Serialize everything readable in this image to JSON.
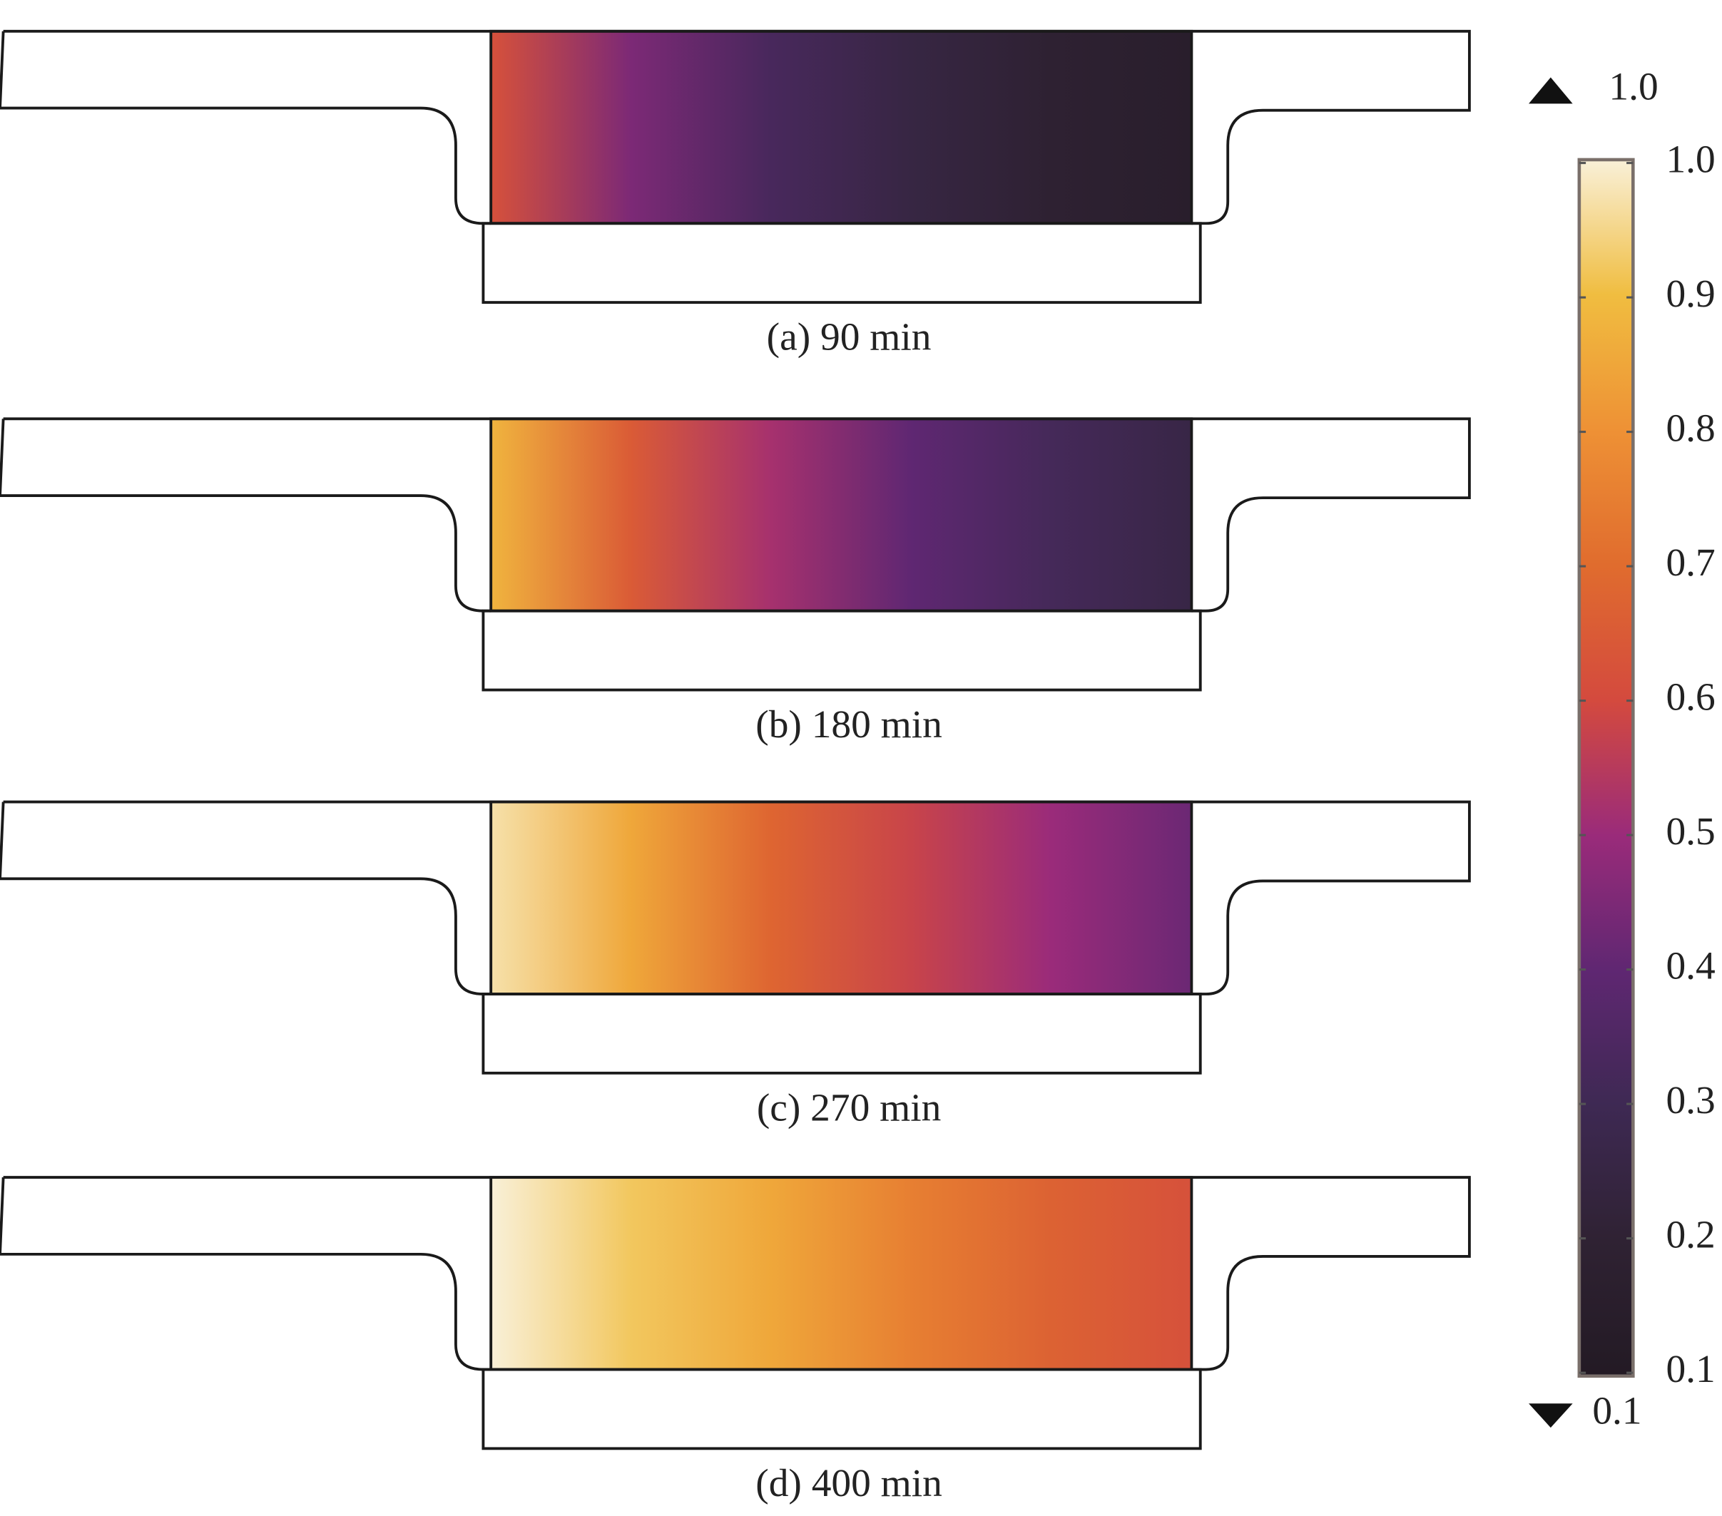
{
  "chart_data": {
    "type": "field",
    "panels": [
      {
        "label": "(a) 90 min",
        "values": [
          0.62,
          0.45,
          0.33,
          0.25,
          0.19,
          0.15
        ]
      },
      {
        "label": "(b) 180 min",
        "values": [
          0.88,
          0.65,
          0.52,
          0.4,
          0.32,
          0.26
        ]
      },
      {
        "label": "(c) 270 min",
        "values": [
          0.97,
          0.85,
          0.68,
          0.58,
          0.5,
          0.42
        ]
      },
      {
        "label": "(d) 400 min",
        "values": [
          1.0,
          0.92,
          0.85,
          0.75,
          0.67,
          0.62
        ]
      }
    ],
    "colorbar": {
      "lim": [
        0.1,
        1.0
      ],
      "ticks": [
        {
          "value": 1.0,
          "label": "1.0"
        },
        0.9,
        0.8,
        0.7,
        0.6,
        0.5,
        0.4,
        0.3,
        0.2,
        0.1
      ],
      "max": {
        "value": 1.0,
        "label": "1.0"
      },
      "min": 0.1,
      "colors": [
        "#231a24",
        "#2f2233",
        "#3e2953",
        "#5f2772",
        "#9a2b7a",
        "#d44a3e",
        "#e06c2e",
        "#ee9135",
        "#f0bd40",
        "#f9f0d8"
      ]
    }
  }
}
